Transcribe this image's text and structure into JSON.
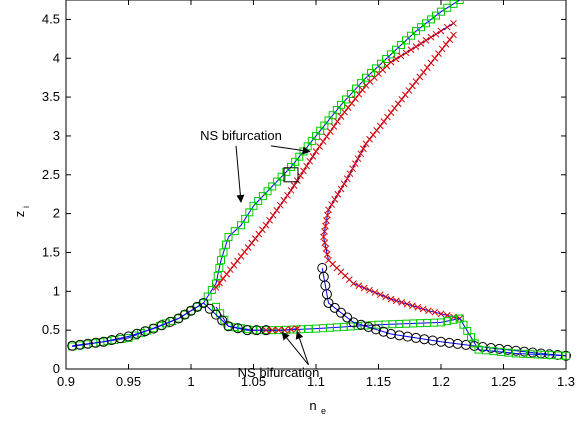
{
  "chart_data": {
    "type": "line",
    "title": "",
    "xlabel": "n",
    "xlabel_sub": "e",
    "ylabel": "z",
    "ylabel_sub": "i",
    "xlim": [
      0.9,
      1.3
    ],
    "ylim": [
      0,
      4.75
    ],
    "grid": false,
    "legend": "none",
    "xticks": [
      0.9,
      0.95,
      1,
      1.05,
      1.1,
      1.15,
      1.2,
      1.25,
      1.3
    ],
    "yticks": [
      0,
      0.5,
      1,
      1.5,
      2,
      2.5,
      3,
      3.5,
      4,
      4.5
    ],
    "xtick_labels": [
      "0.9",
      "0.95",
      "1",
      "1.05",
      "1.1",
      "1.15",
      "1.2",
      "1.25",
      "1.3"
    ],
    "ytick_labels": [
      "0",
      "0.5",
      "1",
      "1.5",
      "2",
      "2.5",
      "3",
      "3.5",
      "4",
      "4.5"
    ],
    "series": [
      {
        "style": "blue-line-green-squares",
        "color": "#0000ff",
        "marker_color": "#00cc00",
        "points": [
          [
            0.905,
            0.29
          ],
          [
            0.95,
            0.4
          ],
          [
            0.99,
            0.65
          ],
          [
            1.01,
            0.85
          ],
          [
            1.02,
            1.1
          ],
          [
            1.024,
            1.4
          ],
          [
            1.03,
            1.7
          ],
          [
            1.04,
            1.85
          ],
          [
            1.05,
            2.1
          ],
          [
            1.065,
            2.35
          ],
          [
            1.08,
            2.6
          ],
          [
            1.1,
            3.0
          ],
          [
            1.12,
            3.4
          ],
          [
            1.14,
            3.75
          ],
          [
            1.16,
            4.05
          ],
          [
            1.18,
            4.35
          ],
          [
            1.2,
            4.6
          ],
          [
            1.215,
            4.75
          ]
        ]
      },
      {
        "style": "blue-line-red-crosses",
        "color": "#0000ff",
        "marker_color": "#dd0000",
        "points": [
          [
            1.02,
            1.05
          ],
          [
            1.04,
            1.45
          ],
          [
            1.06,
            1.85
          ],
          [
            1.08,
            2.3
          ],
          [
            1.1,
            2.8
          ],
          [
            1.12,
            3.25
          ],
          [
            1.14,
            3.65
          ],
          [
            1.16,
            3.95
          ],
          [
            1.18,
            4.15
          ],
          [
            1.2,
            4.35
          ],
          [
            1.21,
            4.45
          ]
        ]
      },
      {
        "style": "blue-line-red-crosses",
        "color": "#0000ff",
        "marker_color": "#dd0000",
        "points": [
          [
            1.21,
            4.3
          ],
          [
            1.18,
            3.7
          ],
          [
            1.16,
            3.3
          ],
          [
            1.14,
            2.9
          ],
          [
            1.125,
            2.45
          ],
          [
            1.11,
            2.05
          ],
          [
            1.106,
            1.7
          ],
          [
            1.11,
            1.4
          ],
          [
            1.13,
            1.1
          ],
          [
            1.16,
            0.9
          ],
          [
            1.19,
            0.75
          ],
          [
            1.215,
            0.65
          ]
        ]
      },
      {
        "style": "green-squares-bottom",
        "color": "#0000ff",
        "marker_color": "#00cc00",
        "points": [
          [
            1.02,
            0.8
          ],
          [
            1.03,
            0.55
          ],
          [
            1.05,
            0.5
          ],
          [
            1.07,
            0.5
          ],
          [
            1.1,
            0.52
          ],
          [
            1.15,
            0.57
          ],
          [
            1.2,
            0.6
          ],
          [
            1.215,
            0.65
          ]
        ]
      },
      {
        "style": "black-circles",
        "color": "#0000ff",
        "marker_color": "#000000",
        "points": [
          [
            0.905,
            0.3
          ],
          [
            0.93,
            0.35
          ],
          [
            0.95,
            0.42
          ],
          [
            0.97,
            0.52
          ],
          [
            0.99,
            0.65
          ],
          [
            1.0,
            0.75
          ],
          [
            1.01,
            0.85
          ],
          [
            1.02,
            0.7
          ],
          [
            1.03,
            0.55
          ],
          [
            1.045,
            0.5
          ],
          [
            1.06,
            0.5
          ]
        ]
      },
      {
        "style": "black-circles-right",
        "color": "#0000ff",
        "marker_color": "#000000",
        "points": [
          [
            1.105,
            1.3
          ],
          [
            1.11,
            0.85
          ],
          [
            1.13,
            0.6
          ],
          [
            1.16,
            0.45
          ],
          [
            1.2,
            0.35
          ],
          [
            1.24,
            0.27
          ],
          [
            1.28,
            0.2
          ],
          [
            1.3,
            0.17
          ]
        ]
      },
      {
        "style": "red-crosses-gap",
        "color": "#0000ff",
        "marker_color": "#dd0000",
        "points": [
          [
            1.06,
            0.5
          ],
          [
            1.065,
            0.5
          ],
          [
            1.07,
            0.5
          ],
          [
            1.075,
            0.5
          ],
          [
            1.08,
            0.51
          ],
          [
            1.085,
            0.52
          ]
        ]
      },
      {
        "style": "blue-line-tail",
        "color": "#0000ff",
        "marker_color": "#00cc00",
        "points": [
          [
            1.215,
            0.65
          ],
          [
            1.23,
            0.25
          ],
          [
            1.26,
            0.2
          ],
          [
            1.3,
            0.17
          ]
        ]
      }
    ],
    "annotations": [
      {
        "text": "NS bifurcation",
        "anchor": [
          1.04,
          2.95
        ],
        "arrows_to": [
          [
            1.095,
            2.8
          ],
          [
            1.04,
            2.15
          ]
        ],
        "boxed": false
      },
      {
        "text": "NS bifurcation",
        "anchor": [
          1.07,
          -0.1
        ],
        "arrows_to": [
          [
            1.073,
            0.47
          ],
          [
            1.085,
            0.48
          ]
        ],
        "boxed": false
      }
    ],
    "marked_point": {
      "x": 1.08,
      "y": 2.5,
      "label": ""
    }
  }
}
